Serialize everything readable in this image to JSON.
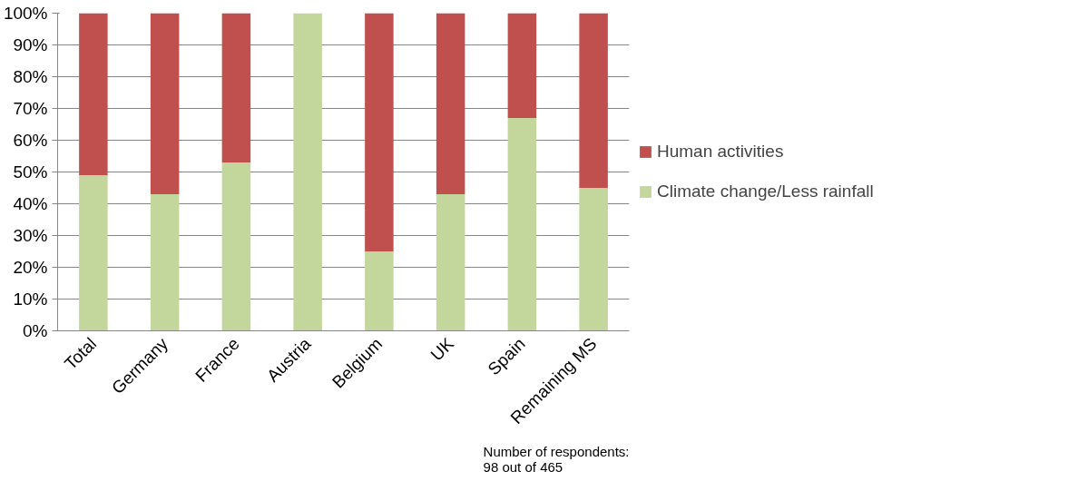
{
  "chart_data": {
    "type": "bar",
    "stacked": true,
    "categories": [
      "Total",
      "Germany",
      "France",
      "Austria",
      "Belgium",
      "UK",
      "Spain",
      "Remaining MS"
    ],
    "series": [
      {
        "name": "Climate change/Less rainfall",
        "color": "#c3d69b",
        "values": [
          49,
          43,
          53,
          100,
          25,
          43,
          67,
          45
        ]
      },
      {
        "name": "Human activities",
        "color": "#c0504d",
        "values": [
          51,
          57,
          47,
          0,
          75,
          57,
          33,
          55
        ]
      }
    ],
    "ylim": [
      0,
      100
    ],
    "yticks": [
      {
        "value": 0,
        "label": "0%"
      },
      {
        "value": 10,
        "label": "10%"
      },
      {
        "value": 20,
        "label": "20%"
      },
      {
        "value": 30,
        "label": "30%"
      },
      {
        "value": 40,
        "label": "40%"
      },
      {
        "value": 50,
        "label": "50%"
      },
      {
        "value": 60,
        "label": "60%"
      },
      {
        "value": 70,
        "label": "70%"
      },
      {
        "value": 80,
        "label": "80%"
      },
      {
        "value": 90,
        "label": "90%"
      },
      {
        "value": 100,
        "label": "100%"
      }
    ],
    "grid": "y",
    "legend": "right",
    "annotations": [
      "Number of respondents: 98 out of 465"
    ]
  }
}
